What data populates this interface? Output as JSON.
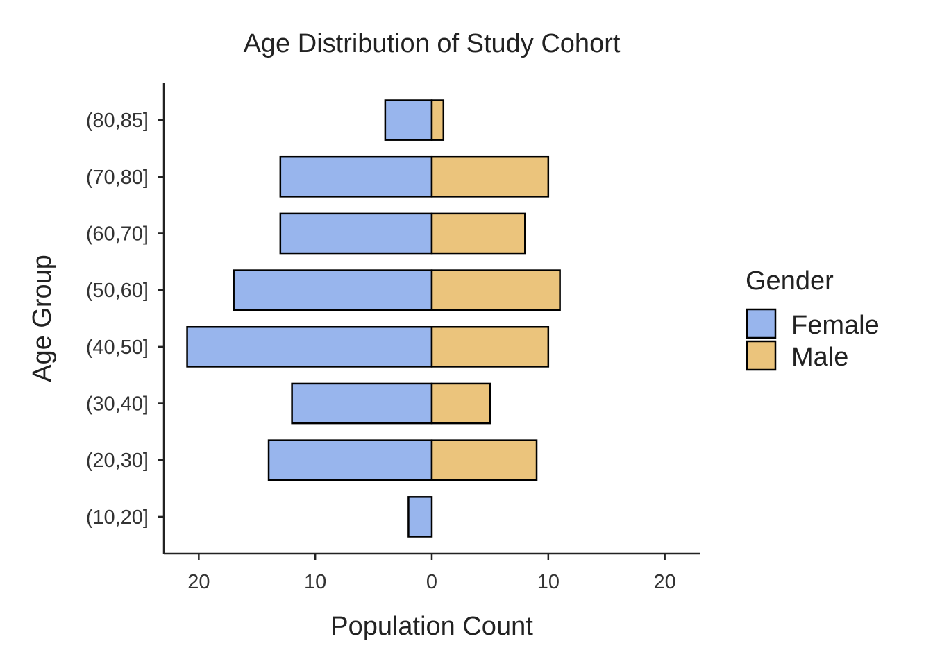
{
  "chart_data": {
    "type": "bar",
    "orientation": "horizontal",
    "title": "Age Distribution of Study Cohort",
    "xlabel": "Population Count",
    "ylabel": "Age Group",
    "categories": [
      "(10,20]",
      "(20,30]",
      "(30,40]",
      "(40,50]",
      "(50,60]",
      "(60,70]",
      "(70,80]",
      "(80,85]"
    ],
    "series": [
      {
        "name": "Female",
        "color": "#98B5ED",
        "direction": "left",
        "values": [
          2,
          14,
          12,
          21,
          17,
          13,
          13,
          4
        ]
      },
      {
        "name": "Male",
        "color": "#EBC47C",
        "direction": "right",
        "values": [
          0,
          9,
          5,
          10,
          11,
          8,
          10,
          1
        ]
      }
    ],
    "xlim": [
      -23,
      23
    ],
    "x_ticks": [
      -20,
      -10,
      0,
      10,
      20
    ],
    "x_tick_labels": [
      "20",
      "10",
      "0",
      "10",
      "20"
    ],
    "legend": {
      "title": "Gender",
      "position": "right"
    },
    "grid": false
  }
}
